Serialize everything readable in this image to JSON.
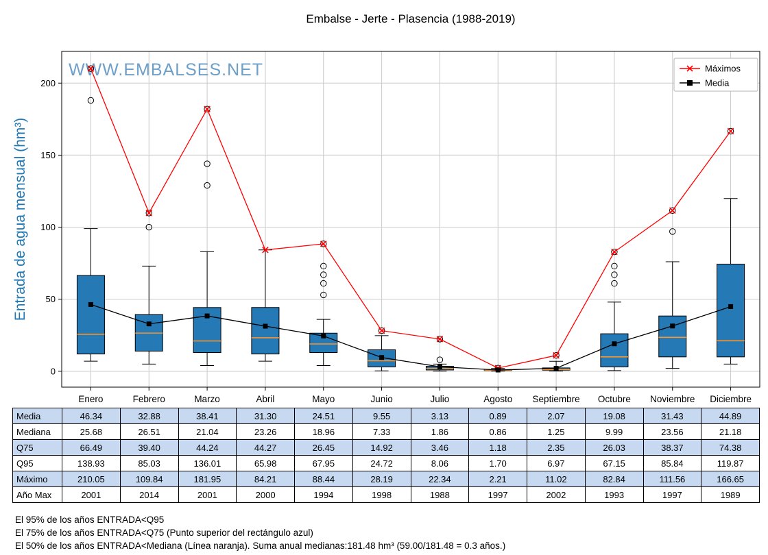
{
  "title": "Embalse - Jerte - Plasencia (1988-2019)",
  "watermark": "WWW.EMBALSES.NET",
  "ylabel": "Entrada de agua mensual (hm³)",
  "chart_data": {
    "type": "boxplot",
    "categories": [
      "Enero",
      "Febrero",
      "Marzo",
      "Abril",
      "Mayo",
      "Junio",
      "Julio",
      "Agosto",
      "Septiembre",
      "Octubre",
      "Noviembre",
      "Diciembre"
    ],
    "yticks": [
      0,
      50,
      100,
      150,
      200
    ],
    "ylim": [
      -11,
      222
    ],
    "grid": true,
    "legend_position": "upper right",
    "colors": {
      "box": "#2579b5",
      "median": "#ff9429",
      "maximos": "#ff0000",
      "media": "#000000",
      "grid": "#c9c9c9",
      "watermark": "#6d9fc9"
    },
    "series": [
      {
        "name": "Máximos",
        "marker": "x",
        "color": "#ff0000",
        "values": [
          210.05,
          109.84,
          181.95,
          84.21,
          88.44,
          28.19,
          22.34,
          2.21,
          11.02,
          82.84,
          111.56,
          166.65
        ]
      },
      {
        "name": "Media",
        "marker": "square",
        "color": "#000000",
        "values": [
          46.34,
          32.88,
          38.41,
          31.3,
          24.51,
          9.55,
          3.13,
          0.89,
          2.07,
          19.08,
          31.43,
          44.89
        ]
      }
    ],
    "boxes": [
      {
        "q1": 12,
        "med": 25.68,
        "q3": 66.49,
        "lo": 7,
        "hi": 99,
        "outliers": [
          188,
          210.05
        ]
      },
      {
        "q1": 14,
        "med": 26.51,
        "q3": 39.4,
        "lo": 5,
        "hi": 73,
        "outliers": [
          100,
          109.84
        ]
      },
      {
        "q1": 13,
        "med": 21.04,
        "q3": 44.24,
        "lo": 4,
        "hi": 83,
        "outliers": [
          129,
          144,
          181.95
        ]
      },
      {
        "q1": 12,
        "med": 23.26,
        "q3": 44.27,
        "lo": 7,
        "hi": 84.21,
        "outliers": []
      },
      {
        "q1": 13,
        "med": 18.96,
        "q3": 26.45,
        "lo": 4,
        "hi": 36,
        "outliers": [
          53,
          61,
          67,
          73,
          88.44
        ]
      },
      {
        "q1": 3,
        "med": 7.33,
        "q3": 14.92,
        "lo": 0.3,
        "hi": 24.72,
        "outliers": [
          28.19
        ]
      },
      {
        "q1": 0.9,
        "med": 1.86,
        "q3": 3.46,
        "lo": 0.1,
        "hi": 5,
        "outliers": [
          8,
          22.34
        ]
      },
      {
        "q1": 0.5,
        "med": 0.86,
        "q3": 1.18,
        "lo": 0.1,
        "hi": 2,
        "outliers": [
          2.21
        ]
      },
      {
        "q1": 0.8,
        "med": 1.25,
        "q3": 2.35,
        "lo": 0.2,
        "hi": 6.97,
        "outliers": [
          11.02
        ]
      },
      {
        "q1": 3,
        "med": 9.99,
        "q3": 26.03,
        "lo": 0.5,
        "hi": 48,
        "outliers": [
          61,
          67,
          73,
          82.84
        ]
      },
      {
        "q1": 10,
        "med": 23.56,
        "q3": 38.37,
        "lo": 2,
        "hi": 76,
        "outliers": [
          97,
          111.56
        ]
      },
      {
        "q1": 10,
        "med": 21.18,
        "q3": 74.38,
        "lo": 5,
        "hi": 119.87,
        "outliers": [
          166.65
        ]
      }
    ]
  },
  "table": {
    "rows": [
      {
        "label": "Media",
        "shaded": true,
        "values": [
          "46.34",
          "32.88",
          "38.41",
          "31.30",
          "24.51",
          "9.55",
          "3.13",
          "0.89",
          "2.07",
          "19.08",
          "31.43",
          "44.89"
        ]
      },
      {
        "label": "Mediana",
        "shaded": false,
        "values": [
          "25.68",
          "26.51",
          "21.04",
          "23.26",
          "18.96",
          "7.33",
          "1.86",
          "0.86",
          "1.25",
          "9.99",
          "23.56",
          "21.18"
        ]
      },
      {
        "label": "Q75",
        "shaded": true,
        "values": [
          "66.49",
          "39.40",
          "44.24",
          "44.27",
          "26.45",
          "14.92",
          "3.46",
          "1.18",
          "2.35",
          "26.03",
          "38.37",
          "74.38"
        ]
      },
      {
        "label": "Q95",
        "shaded": false,
        "values": [
          "138.93",
          "85.03",
          "136.01",
          "65.98",
          "67.95",
          "24.72",
          "8.06",
          "1.70",
          "6.97",
          "67.15",
          "85.84",
          "119.87"
        ]
      },
      {
        "label": "Máximo",
        "shaded": true,
        "values": [
          "210.05",
          "109.84",
          "181.95",
          "84.21",
          "88.44",
          "28.19",
          "22.34",
          "2.21",
          "11.02",
          "82.84",
          "111.56",
          "166.65"
        ]
      },
      {
        "label": "Año Max",
        "shaded": false,
        "values": [
          "2001",
          "2014",
          "2001",
          "2000",
          "1994",
          "1998",
          "1988",
          "1997",
          "2002",
          "1993",
          "1997",
          "1989"
        ]
      }
    ]
  },
  "footnotes": [
    "El 95% de los años ENTRADA<Q95",
    "El 75% de los años ENTRADA<Q75 (Punto superior del rectángulo azul)",
    "El 50% de los años ENTRADA<Mediana (Línea naranja). Suma anual medianas:181.48 hm³ (59.00/181.48 = 0.3 años.)"
  ]
}
